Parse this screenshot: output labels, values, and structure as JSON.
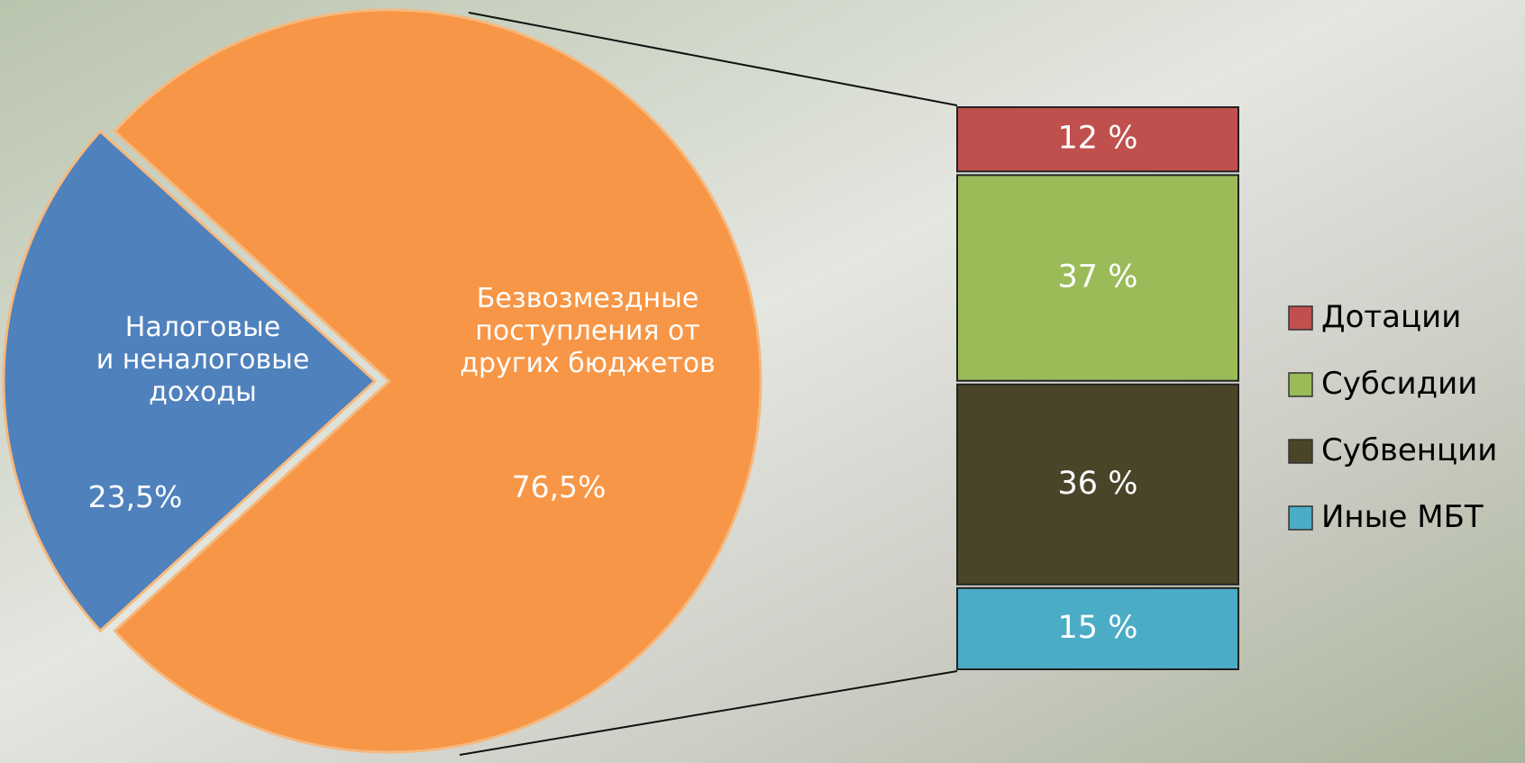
{
  "chart_data": [
    {
      "type": "pie",
      "categories": [
        "Налоговые\nи неналоговые\nдоходы",
        "Безвозмездные\nпоступления от\nдругих бюджетов"
      ],
      "values": [
        23.5,
        76.5
      ],
      "value_labels": [
        "23,5%",
        "76,5%"
      ],
      "colors": [
        "#4f81bd",
        "#f79646"
      ]
    },
    {
      "type": "stacked_bar",
      "legend": "right",
      "series": [
        {
          "name": "Дотации",
          "color": "#c0504d",
          "values": [
            12
          ],
          "value_labels": [
            "12 %"
          ]
        },
        {
          "name": "Субсидии",
          "color": "#9bbb59",
          "values": [
            37
          ],
          "value_labels": [
            "37 %"
          ]
        },
        {
          "name": "Субвенции",
          "color": "#4a4529",
          "values": [
            36
          ],
          "value_labels": [
            "36 %"
          ]
        },
        {
          "name": "Иные МБТ",
          "color": "#4bacc6",
          "values": [
            15
          ],
          "value_labels": [
            "15 %"
          ]
        }
      ]
    }
  ]
}
